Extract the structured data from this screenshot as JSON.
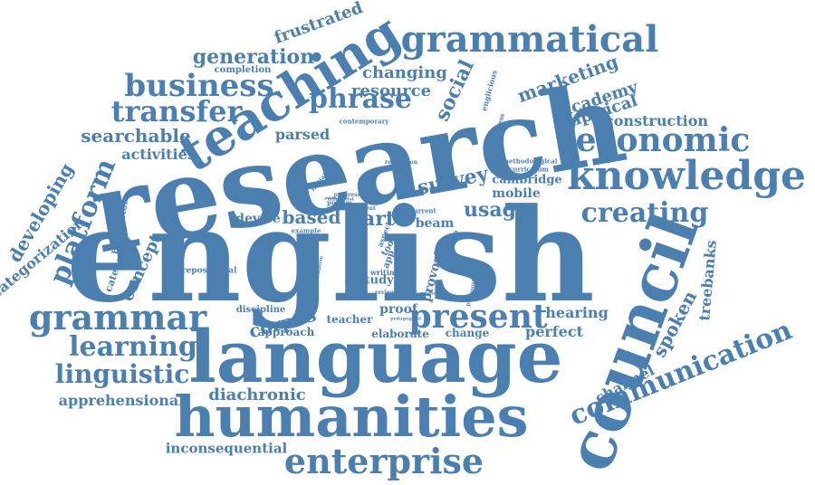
{
  "color": "#4a7fb0",
  "words": [
    "research",
    "english",
    "language",
    "council",
    "humanities",
    "teaching",
    "knowledge",
    "grammatical",
    "economic",
    "grammar",
    "present",
    "enterprise",
    "communication",
    "business",
    "phrase",
    "transfer",
    "platform",
    "learning",
    "linguistic",
    "creating",
    "generation",
    "searchable",
    "marketing",
    "academy",
    "empirical",
    "construction",
    "social",
    "survey",
    "usage",
    "based",
    "art",
    "developing",
    "categorization",
    "concept",
    "corpus",
    "spoken",
    "treebanks",
    "channel",
    "hearing",
    "perfect",
    "diachronic",
    "apprehensional",
    "inconsequential",
    "frustrated",
    "changing",
    "resource",
    "parsed",
    "activities",
    "mobile",
    "cambridge",
    "device",
    "provost",
    "beam",
    "study",
    "proof",
    "teacher",
    "approach",
    "elaborate",
    "change",
    "discipline",
    "prepositional",
    "categories",
    "huddleston",
    "completion",
    "contemporary",
    "curriculum",
    "methodological",
    "englicious",
    "effectiveness",
    "realization",
    "initiation",
    "rodney",
    "pullum",
    "example",
    "writing",
    "review",
    "tool",
    "app",
    "aspect",
    "averse",
    "progressive",
    "current",
    "recent",
    "influential",
    "publication",
    "pedagogical",
    "subtype",
    "preposition",
    "grammars",
    "development",
    "implementation"
  ]
}
